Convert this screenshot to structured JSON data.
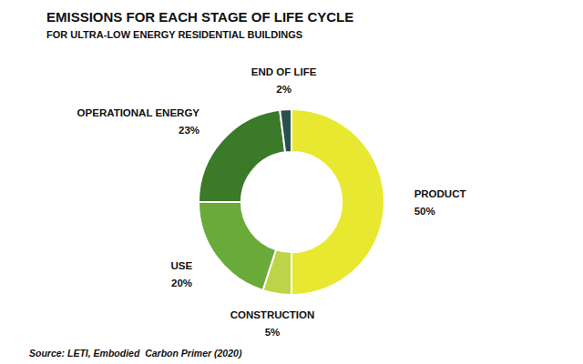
{
  "chart_data": {
    "type": "donut",
    "title": "EMISSIONS FOR EACH STAGE OF LIFE CYCLE",
    "subtitle": "FOR ULTRA-LOW ENERGY RESIDENTIAL BUILDINGS",
    "annotations": [
      "Source: LETI, Embodied  Carbon Primer (2020)"
    ],
    "categories": [
      "PRODUCT",
      "CONSTRUCTION",
      "USE",
      "OPERATIONAL ENERGY",
      "END OF LIFE"
    ],
    "values": [
      50,
      5,
      20,
      23,
      2
    ],
    "value_labels": [
      "50%",
      "5%",
      "20%",
      "23%",
      "2%"
    ],
    "colors": [
      "#e8e831",
      "#bdd44a",
      "#6aaa38",
      "#3a7a28",
      "#2a5050"
    ],
    "data_labels": true
  }
}
